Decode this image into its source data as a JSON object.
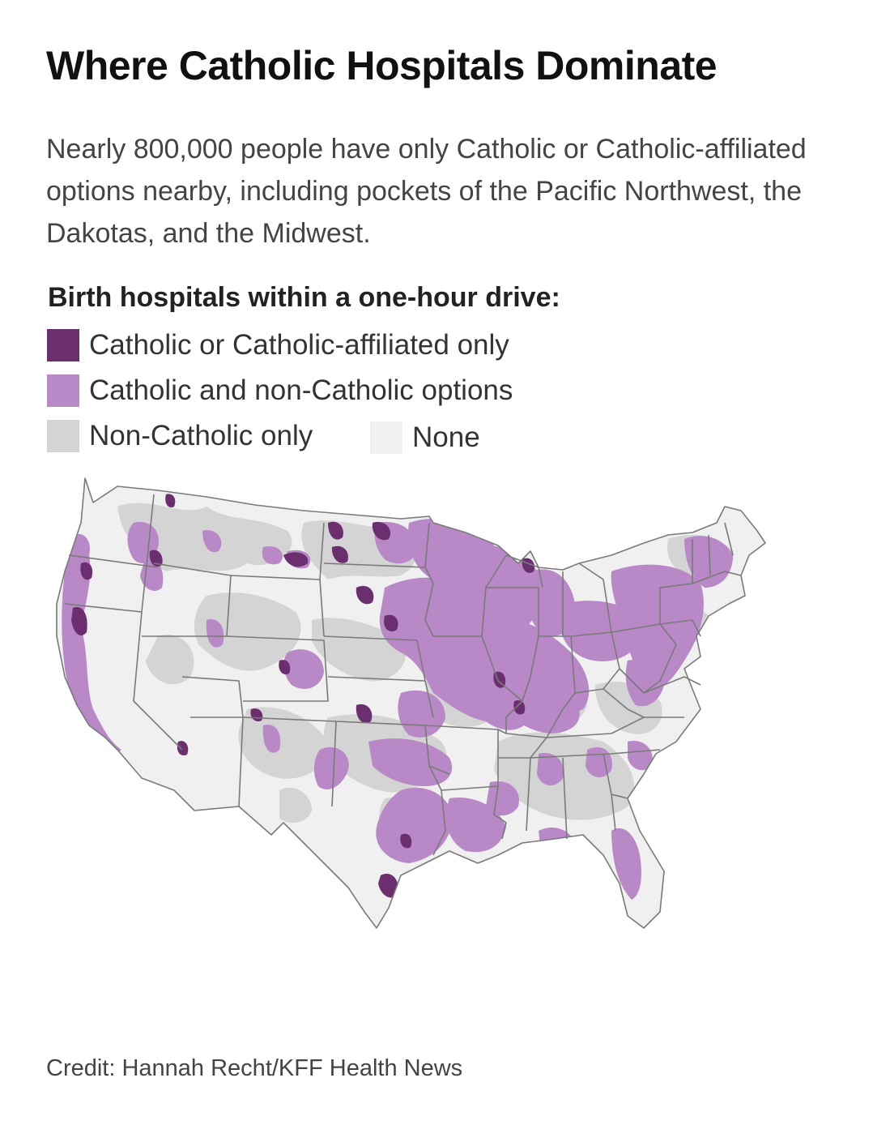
{
  "title": "Where Catholic Hospitals Dominate",
  "subtitle": "Nearly 800,000 people have only Catholic or Catholic-affiliated options nearby, including pockets of the Pacific Northwest, the Dakotas, and the Midwest.",
  "legend": {
    "title": "Birth hospitals within a one-hour drive:",
    "items": [
      {
        "label": "Catholic or Catholic-affiliated only",
        "color": "#6b2f6f"
      },
      {
        "label": "Catholic and non-Catholic options",
        "color": "#b888c7"
      },
      {
        "label": "Non-Catholic only",
        "color": "#d4d4d4"
      },
      {
        "label": "None",
        "color": "#f0f0f0"
      }
    ]
  },
  "map": {
    "region": "contiguous United States",
    "base_color": "#f0f0f0",
    "border_color": "#7a7a7a"
  },
  "credit": "Credit: Hannah Recht/KFF Health News"
}
